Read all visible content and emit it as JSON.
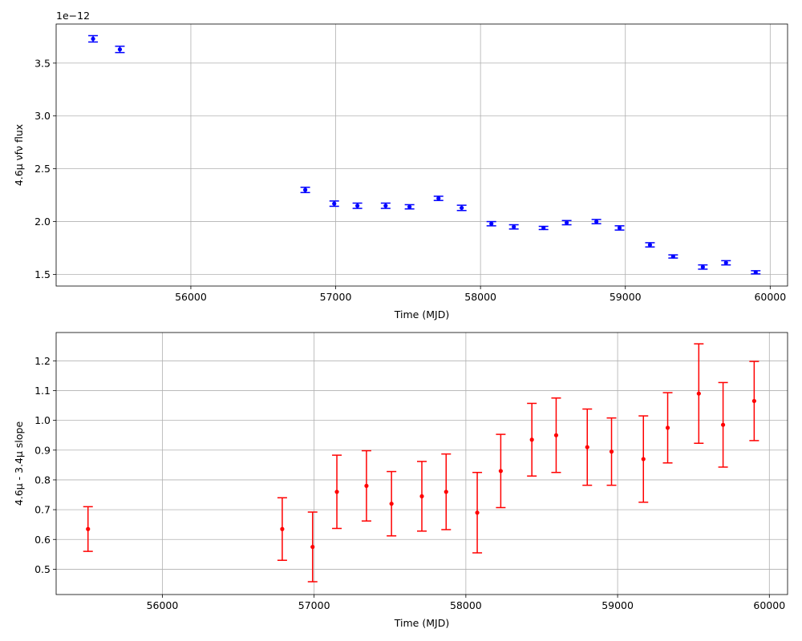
{
  "chart_data": [
    {
      "type": "scatter",
      "xlabel": "Time (MJD)",
      "ylabel": "4.6μ νfν flux",
      "offset_text": "1e−12",
      "xlim": [
        55070,
        60120
      ],
      "ylim": [
        1.39,
        3.87
      ],
      "xticks": [
        56000,
        57000,
        58000,
        59000,
        60000
      ],
      "yticks": [
        1.5,
        2.0,
        2.5,
        3.0,
        3.5
      ],
      "ytick_labels": [
        "1.5",
        "2.0",
        "2.5",
        "3.0",
        "3.5"
      ],
      "grid": true,
      "color": "#0000ff",
      "series": [
        {
          "x": [
            55325,
            55510,
            56790,
            56990,
            57150,
            57345,
            57510,
            57710,
            57870,
            58075,
            58230,
            58435,
            58595,
            58800,
            58960,
            59170,
            59330,
            59535,
            59695,
            59900
          ],
          "y": [
            3.73,
            3.63,
            2.3,
            2.17,
            2.15,
            2.15,
            2.14,
            2.22,
            2.13,
            1.98,
            1.95,
            1.94,
            1.99,
            2.0,
            1.94,
            1.78,
            1.67,
            1.57,
            1.61,
            1.52
          ],
          "yerr": [
            0.03,
            0.03,
            0.025,
            0.025,
            0.025,
            0.025,
            0.02,
            0.02,
            0.025,
            0.02,
            0.02,
            0.015,
            0.02,
            0.02,
            0.02,
            0.02,
            0.015,
            0.02,
            0.02,
            0.015
          ]
        }
      ]
    },
    {
      "type": "scatter",
      "xlabel": "Time (MJD)",
      "ylabel": "4.6μ - 3.4μ slope",
      "xlim": [
        55300,
        60120
      ],
      "ylim": [
        0.415,
        1.295
      ],
      "xticks": [
        56000,
        57000,
        58000,
        59000,
        60000
      ],
      "yticks": [
        0.5,
        0.6,
        0.7,
        0.8,
        0.9,
        1.0,
        1.1,
        1.2
      ],
      "ytick_labels": [
        "0.5",
        "0.6",
        "0.7",
        "0.8",
        "0.9",
        "1.0",
        "1.1",
        "1.2"
      ],
      "grid": true,
      "color": "#ff0000",
      "series": [
        {
          "x": [
            55510,
            56790,
            56990,
            57150,
            57345,
            57510,
            57710,
            57870,
            58075,
            58230,
            58435,
            58595,
            58800,
            58960,
            59170,
            59330,
            59535,
            59695,
            59900
          ],
          "y": [
            0.635,
            0.635,
            0.575,
            0.76,
            0.78,
            0.72,
            0.745,
            0.76,
            0.69,
            0.83,
            0.935,
            0.95,
            0.91,
            0.895,
            0.87,
            0.975,
            1.09,
            0.985,
            1.065
          ],
          "yerr": [
            0.075,
            0.105,
            0.117,
            0.123,
            0.118,
            0.108,
            0.117,
            0.127,
            0.135,
            0.123,
            0.122,
            0.125,
            0.128,
            0.113,
            0.145,
            0.118,
            0.167,
            0.142,
            0.133
          ]
        }
      ]
    }
  ]
}
